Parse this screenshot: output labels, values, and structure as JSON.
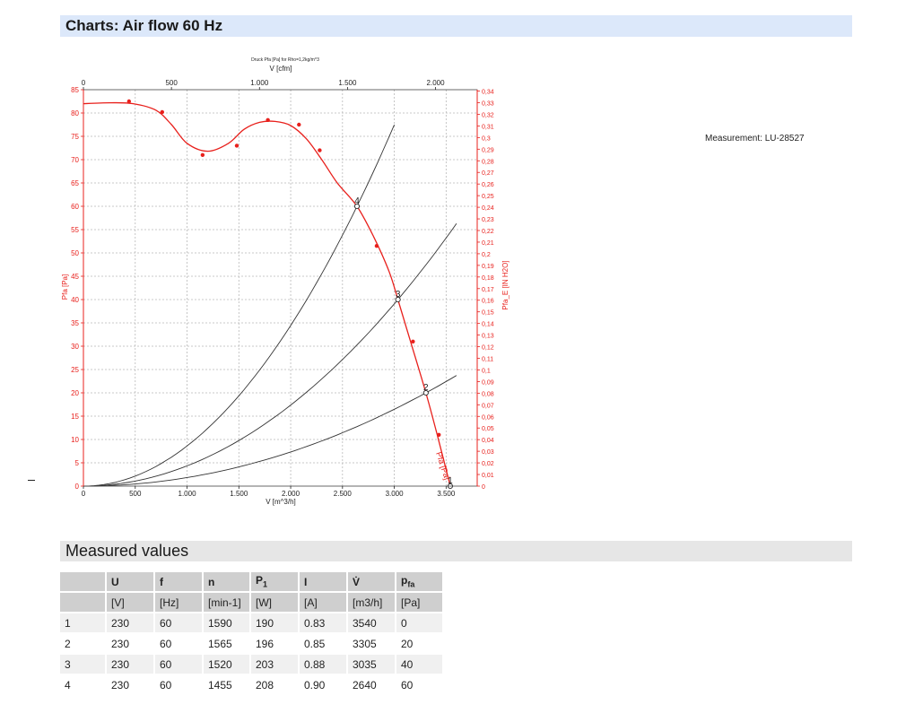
{
  "headers": {
    "charts_title": "Charts: Air flow 60 Hz",
    "measured_title": "Measured values"
  },
  "measurement_label": "Measurement: LU-28527",
  "table": {
    "columns": [
      {
        "sym": "",
        "sub": "",
        "unit": ""
      },
      {
        "sym": "U",
        "sub": "",
        "unit": "[V]"
      },
      {
        "sym": "f",
        "sub": "",
        "unit": "[Hz]"
      },
      {
        "sym": "n",
        "sub": "",
        "unit": "[min-1]"
      },
      {
        "sym": "P",
        "sub": "1",
        "unit": "[W]"
      },
      {
        "sym": "I",
        "sub": "",
        "unit": "[A]"
      },
      {
        "sym": "V̇",
        "sub": "",
        "unit": "[m3/h]"
      },
      {
        "sym": "p",
        "sub": "fa",
        "unit": "[Pa]"
      }
    ],
    "rows": [
      [
        "1",
        "230",
        "60",
        "1590",
        "190",
        "0.83",
        "3540",
        "0"
      ],
      [
        "2",
        "230",
        "60",
        "1565",
        "196",
        "0.85",
        "3305",
        "20"
      ],
      [
        "3",
        "230",
        "60",
        "1520",
        "203",
        "0.88",
        "3035",
        "40"
      ],
      [
        "4",
        "230",
        "60",
        "1455",
        "208",
        "0.90",
        "2640",
        "60"
      ]
    ]
  },
  "chart_data": {
    "type": "line",
    "title": "Druck Pfa [Pa] for Rho=1,2kg/m^3",
    "xlabel": "V [m^3/h]",
    "x2label": "V [cfm]",
    "ylabel": "Pfa [Pa]",
    "y2label": "Pfa_E [IN H2O]",
    "xlim": [
      0,
      3800
    ],
    "ylim": [
      0,
      85
    ],
    "x2lim": [
      0,
      2236.6
    ],
    "y2lim": [
      0,
      0.3412
    ],
    "x_ticks": [
      {
        "v": 0,
        "label": "0"
      },
      {
        "v": 500,
        "label": "500"
      },
      {
        "v": 1000,
        "label": "1.000"
      },
      {
        "v": 1500,
        "label": "1.500"
      },
      {
        "v": 2000,
        "label": "2.000"
      },
      {
        "v": 2500,
        "label": "2.500"
      },
      {
        "v": 3000,
        "label": "3.000"
      },
      {
        "v": 3500,
        "label": "3.500"
      }
    ],
    "x2_ticks": [
      {
        "v": 0,
        "label": "0"
      },
      {
        "v": 500,
        "label": "500"
      },
      {
        "v": 1000,
        "label": "1.000"
      },
      {
        "v": 1500,
        "label": "1.500"
      },
      {
        "v": 2000,
        "label": "2.000"
      }
    ],
    "y_ticks": [
      0,
      5,
      10,
      15,
      20,
      25,
      30,
      35,
      40,
      45,
      50,
      55,
      60,
      65,
      70,
      75,
      80,
      85
    ],
    "y2_ticks": [
      {
        "v": 0,
        "label": "0"
      },
      {
        "v": 0.01,
        "label": "0,01"
      },
      {
        "v": 0.02,
        "label": "0,02"
      },
      {
        "v": 0.03,
        "label": "0,03"
      },
      {
        "v": 0.04,
        "label": "0,04"
      },
      {
        "v": 0.05,
        "label": "0,05"
      },
      {
        "v": 0.06,
        "label": "0,06"
      },
      {
        "v": 0.07,
        "label": "0,07"
      },
      {
        "v": 0.08,
        "label": "0,08"
      },
      {
        "v": 0.09,
        "label": "0,09"
      },
      {
        "v": 0.1,
        "label": "0,1"
      },
      {
        "v": 0.11,
        "label": "0,11"
      },
      {
        "v": 0.12,
        "label": "0,12"
      },
      {
        "v": 0.13,
        "label": "0,13"
      },
      {
        "v": 0.14,
        "label": "0,14"
      },
      {
        "v": 0.15,
        "label": "0,15"
      },
      {
        "v": 0.16,
        "label": "0,16"
      },
      {
        "v": 0.17,
        "label": "0,17"
      },
      {
        "v": 0.18,
        "label": "0,18"
      },
      {
        "v": 0.19,
        "label": "0,19"
      },
      {
        "v": 0.2,
        "label": "0,2"
      },
      {
        "v": 0.21,
        "label": "0,21"
      },
      {
        "v": 0.22,
        "label": "0,22"
      },
      {
        "v": 0.23,
        "label": "0,23"
      },
      {
        "v": 0.24,
        "label": "0,24"
      },
      {
        "v": 0.25,
        "label": "0,25"
      },
      {
        "v": 0.26,
        "label": "0,26"
      },
      {
        "v": 0.27,
        "label": "0,27"
      },
      {
        "v": 0.28,
        "label": "0,28"
      },
      {
        "v": 0.29,
        "label": "0,29"
      },
      {
        "v": 0.3,
        "label": "0,3"
      },
      {
        "v": 0.31,
        "label": "0,31"
      },
      {
        "v": 0.32,
        "label": "0,32"
      },
      {
        "v": 0.33,
        "label": "0,33"
      },
      {
        "v": 0.34,
        "label": "0,34"
      }
    ],
    "grid": true,
    "colors": {
      "curve": "#e8201c",
      "system": "#333333",
      "axis_left": "#e8201c",
      "axis_right": "#e8201c",
      "grid": "#b8b8b8"
    },
    "series": [
      {
        "name": "Pfa [Pa]",
        "role": "fan-curve",
        "x": [
          0,
          250,
          480,
          700,
          850,
          1000,
          1200,
          1400,
          1550,
          1700,
          1850,
          2000,
          2150,
          2300,
          2450,
          2640,
          2800,
          2950,
          3035,
          3150,
          3305,
          3420,
          3540
        ],
        "y": [
          82,
          82.2,
          82.0,
          80.6,
          77.5,
          73.5,
          71.8,
          73.5,
          76.5,
          78.0,
          78.2,
          77.3,
          74.5,
          70.0,
          65.0,
          60.0,
          53.5,
          46.0,
          40.0,
          31.5,
          20.0,
          10.5,
          0
        ]
      },
      {
        "name": "measured",
        "role": "markers",
        "x": [
          440,
          760,
          1150,
          1480,
          1780,
          2080,
          2280,
          2830,
          3180,
          3430
        ],
        "y": [
          82.5,
          80.2,
          71.0,
          73.0,
          78.5,
          77.5,
          72.0,
          51.5,
          31.0,
          11.0
        ]
      },
      {
        "name": "1",
        "role": "operating-point",
        "x": [
          3540
        ],
        "y": [
          0
        ]
      },
      {
        "name": "2",
        "role": "operating-point",
        "x": [
          3305
        ],
        "y": [
          20
        ]
      },
      {
        "name": "3",
        "role": "operating-point",
        "x": [
          3035
        ],
        "y": [
          40
        ]
      },
      {
        "name": "4",
        "role": "operating-point",
        "x": [
          2640
        ],
        "y": [
          60
        ]
      },
      {
        "name": "system-2",
        "role": "system-curve",
        "x_end": 3600,
        "k": 1.8307e-06
      },
      {
        "name": "system-3",
        "role": "system-curve",
        "x_end": 3600,
        "k": 4.3427e-06
      },
      {
        "name": "system-4",
        "role": "system-curve",
        "x_end": 3000,
        "k": 8.6088e-06
      }
    ]
  }
}
